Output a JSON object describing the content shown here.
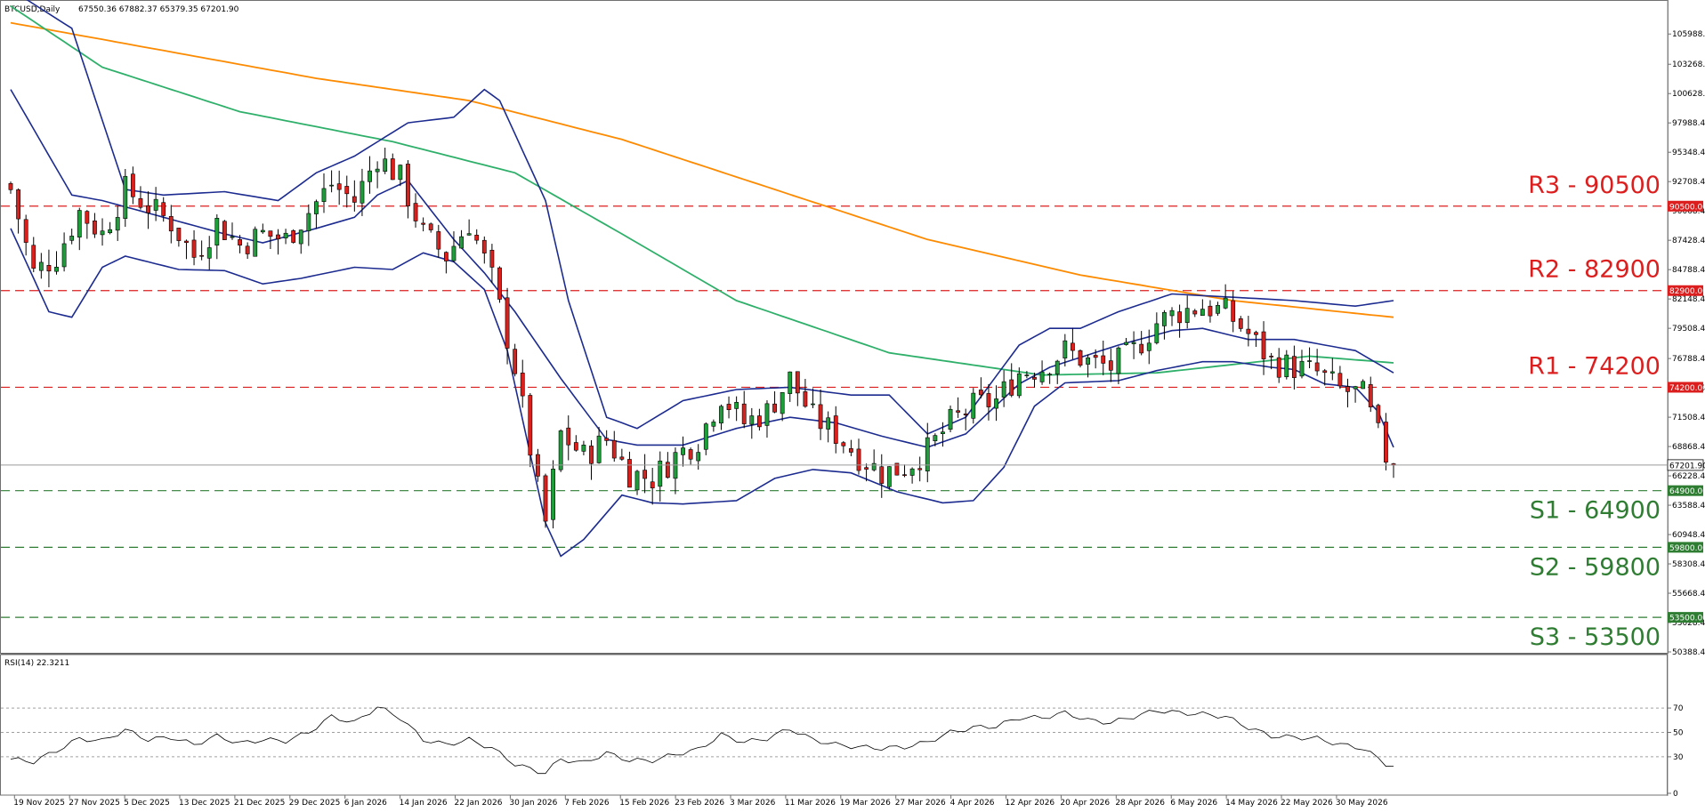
{
  "chart_data": {
    "type": "candlestick",
    "symbol_header": "BTCUSD,Daily",
    "ohlc_header": "67550.36 67882.37 65379.35 67201.90",
    "last_price": 67201.9,
    "last_price_label": "67201.90",
    "price_axis": {
      "ylim": [
        50388.4,
        108728.4
      ],
      "ticks": [
        "105988.40",
        "103268.40",
        "100628.40",
        "97988.40",
        "95348.40",
        "92708.40",
        "90068.40",
        "87428.40",
        "84788.40",
        "82148.40",
        "79508.40",
        "76788.40",
        "74148.40",
        "71508.40",
        "68868.40",
        "66228.40",
        "63588.40",
        "60948.40",
        "58308.40",
        "55668.40",
        "53028.40",
        "50388.40"
      ]
    },
    "levels": [
      {
        "label": "R3 - 90500",
        "value": 90500,
        "tag": "90500.00",
        "color": "#dc1e1e",
        "tag_bg": "#dc1e1e"
      },
      {
        "label": "R2 - 82900",
        "value": 82900,
        "tag": "82900.00",
        "color": "#dc1e1e",
        "tag_bg": "#dc1e1e"
      },
      {
        "label": "R1 - 74200",
        "value": 74200,
        "tag": "74200.00",
        "color": "#dc1e1e",
        "tag_bg": "#dc1e1e"
      },
      {
        "label": "S1 - 64900",
        "value": 64900,
        "tag": "64900.00",
        "color": "#2f7d32",
        "tag_bg": "#2e7d32"
      },
      {
        "label": "S2 - 59800",
        "value": 59800,
        "tag": "59800.00",
        "color": "#2f7d32",
        "tag_bg": "#2e7d32"
      },
      {
        "label": "S3 - 53500",
        "value": 53500,
        "tag": "53500.00",
        "color": "#2f7d32",
        "tag_bg": "#2e7d32"
      }
    ],
    "x_labels": [
      "19 Nov 2025",
      "27 Nov 2025",
      "5 Dec 2025",
      "13 Dec 2025",
      "21 Dec 2025",
      "29 Dec 2025",
      "6 Jan 2026",
      "14 Jan 2026",
      "22 Jan 2026",
      "30 Jan 2026",
      "7 Feb 2026",
      "15 Feb 2026",
      "23 Feb 2026",
      "3 Mar 2026",
      "11 Mar 2026",
      "19 Mar 2026",
      "27 Mar 2026",
      "4 Apr 2026",
      "12 Apr 2026",
      "20 Apr 2026",
      "28 Apr 2026",
      "6 May 2026",
      "14 May 2026",
      "22 May 2026",
      "30 May 2026"
    ],
    "series": [
      {
        "kind": "close_anchors",
        "points": [
          [
            0,
            92000
          ],
          [
            3,
            84500
          ],
          [
            6,
            86000
          ],
          [
            9,
            90000
          ],
          [
            12,
            88000
          ],
          [
            15,
            92000
          ],
          [
            18,
            90500
          ],
          [
            21,
            89000
          ],
          [
            24,
            86000
          ],
          [
            27,
            89000
          ],
          [
            30,
            87000
          ],
          [
            33,
            88000
          ],
          [
            36,
            87500
          ],
          [
            39,
            90000
          ],
          [
            42,
            92500
          ],
          [
            45,
            91000
          ],
          [
            48,
            95000
          ],
          [
            51,
            93000
          ],
          [
            54,
            88000
          ],
          [
            57,
            86000
          ],
          [
            60,
            89000
          ],
          [
            63,
            84000
          ],
          [
            66,
            76000
          ],
          [
            69,
            65000
          ],
          [
            70,
            62000
          ],
          [
            72,
            70000
          ],
          [
            75,
            68000
          ],
          [
            78,
            69500
          ],
          [
            81,
            66500
          ],
          [
            84,
            66000
          ],
          [
            87,
            68000
          ],
          [
            90,
            69500
          ],
          [
            93,
            73500
          ],
          [
            96,
            71000
          ],
          [
            99,
            72000
          ],
          [
            102,
            75000
          ],
          [
            105,
            71500
          ],
          [
            108,
            70000
          ],
          [
            111,
            68000
          ],
          [
            114,
            66500
          ],
          [
            117,
            67000
          ],
          [
            120,
            68500
          ],
          [
            123,
            71000
          ],
          [
            126,
            72500
          ],
          [
            129,
            73000
          ],
          [
            132,
            75500
          ],
          [
            135,
            76000
          ],
          [
            138,
            77500
          ],
          [
            141,
            76500
          ],
          [
            144,
            76000
          ],
          [
            147,
            77500
          ],
          [
            150,
            80000
          ],
          [
            153,
            81000
          ],
          [
            156,
            81500
          ],
          [
            159,
            81000
          ],
          [
            162,
            79000
          ],
          [
            165,
            76500
          ],
          [
            168,
            76000
          ],
          [
            171,
            75500
          ],
          [
            174,
            74000
          ],
          [
            177,
            73500
          ],
          [
            180,
            68000
          ],
          [
            181,
            67202
          ]
        ]
      },
      {
        "name": "MA-orange",
        "color": "#ff8a00",
        "points": [
          [
            0,
            107000
          ],
          [
            20,
            104500
          ],
          [
            40,
            102000
          ],
          [
            60,
            100000
          ],
          [
            80,
            96500
          ],
          [
            100,
            92000
          ],
          [
            120,
            87500
          ],
          [
            140,
            84300
          ],
          [
            160,
            82000
          ],
          [
            181,
            80500
          ]
        ]
      },
      {
        "name": "MA-green",
        "color": "#2fb06a",
        "points": [
          [
            0,
            108500
          ],
          [
            12,
            103000
          ],
          [
            30,
            99000
          ],
          [
            50,
            96300
          ],
          [
            66,
            93500
          ],
          [
            80,
            88000
          ],
          [
            95,
            82000
          ],
          [
            115,
            77300
          ],
          [
            135,
            75300
          ],
          [
            150,
            75500
          ],
          [
            170,
            77000
          ],
          [
            181,
            76400
          ]
        ]
      },
      {
        "name": "BB-upper",
        "color": "#1c2b8f",
        "points": [
          [
            0,
            110000
          ],
          [
            8,
            106500
          ],
          [
            15,
            92000
          ],
          [
            20,
            91500
          ],
          [
            28,
            91800
          ],
          [
            35,
            91000
          ],
          [
            40,
            93500
          ],
          [
            45,
            95000
          ],
          [
            52,
            98000
          ],
          [
            58,
            98500
          ],
          [
            62,
            101000
          ],
          [
            64,
            100000
          ],
          [
            70,
            91000
          ],
          [
            73,
            82000
          ],
          [
            78,
            71500
          ],
          [
            82,
            70500
          ],
          [
            88,
            73000
          ],
          [
            95,
            74000
          ],
          [
            102,
            74200
          ],
          [
            110,
            73500
          ],
          [
            115,
            73500
          ],
          [
            120,
            70000
          ],
          [
            125,
            71500
          ],
          [
            132,
            78000
          ],
          [
            136,
            79500
          ],
          [
            140,
            79500
          ],
          [
            145,
            81000
          ],
          [
            152,
            82600
          ],
          [
            160,
            82300
          ],
          [
            168,
            82000
          ],
          [
            176,
            81500
          ],
          [
            181,
            82000
          ]
        ]
      },
      {
        "name": "BB-mid",
        "color": "#1c2b8f",
        "points": [
          [
            0,
            101000
          ],
          [
            8,
            91500
          ],
          [
            12,
            91000
          ],
          [
            20,
            89500
          ],
          [
            28,
            88000
          ],
          [
            33,
            87200
          ],
          [
            40,
            88500
          ],
          [
            45,
            89500
          ],
          [
            48,
            91500
          ],
          [
            52,
            92800
          ],
          [
            58,
            87500
          ],
          [
            62,
            84500
          ],
          [
            66,
            81000
          ],
          [
            72,
            75000
          ],
          [
            78,
            69500
          ],
          [
            82,
            69000
          ],
          [
            88,
            69000
          ],
          [
            95,
            70500
          ],
          [
            102,
            71500
          ],
          [
            108,
            71000
          ],
          [
            114,
            69800
          ],
          [
            120,
            68800
          ],
          [
            125,
            70000
          ],
          [
            132,
            74500
          ],
          [
            136,
            76000
          ],
          [
            145,
            78000
          ],
          [
            152,
            79300
          ],
          [
            156,
            79500
          ],
          [
            162,
            78500
          ],
          [
            168,
            78500
          ],
          [
            176,
            77500
          ],
          [
            181,
            75500
          ]
        ]
      },
      {
        "name": "BB-lower",
        "color": "#1c2b8f",
        "points": [
          [
            0,
            88500
          ],
          [
            5,
            81000
          ],
          [
            8,
            80500
          ],
          [
            12,
            85000
          ],
          [
            15,
            86000
          ],
          [
            22,
            84800
          ],
          [
            28,
            84700
          ],
          [
            33,
            83500
          ],
          [
            38,
            84000
          ],
          [
            45,
            85000
          ],
          [
            50,
            84800
          ],
          [
            54,
            86300
          ],
          [
            58,
            85500
          ],
          [
            62,
            83000
          ],
          [
            65,
            77500
          ],
          [
            70,
            62000
          ],
          [
            72,
            59000
          ],
          [
            75,
            60500
          ],
          [
            80,
            64500
          ],
          [
            84,
            63800
          ],
          [
            88,
            63700
          ],
          [
            95,
            64000
          ],
          [
            100,
            66000
          ],
          [
            105,
            66800
          ],
          [
            110,
            66500
          ],
          [
            116,
            64800
          ],
          [
            122,
            63800
          ],
          [
            126,
            64000
          ],
          [
            130,
            67000
          ],
          [
            134,
            72500
          ],
          [
            138,
            74600
          ],
          [
            145,
            74800
          ],
          [
            150,
            75700
          ],
          [
            156,
            76500
          ],
          [
            160,
            76500
          ],
          [
            165,
            76000
          ],
          [
            168,
            75800
          ],
          [
            172,
            74500
          ],
          [
            176,
            74200
          ],
          [
            179,
            72000
          ],
          [
            181,
            68800
          ]
        ]
      }
    ],
    "rsi": {
      "label": "RSI(14) 22.3211",
      "ticks": [
        "70",
        "50",
        "30",
        "0"
      ],
      "ylim": [
        0,
        100
      ],
      "levels": [
        70,
        50,
        30
      ],
      "points": [
        [
          0,
          28
        ],
        [
          3,
          26
        ],
        [
          6,
          35
        ],
        [
          9,
          45
        ],
        [
          12,
          43
        ],
        [
          15,
          52
        ],
        [
          18,
          44
        ],
        [
          21,
          46
        ],
        [
          24,
          40
        ],
        [
          27,
          47
        ],
        [
          30,
          41
        ],
        [
          33,
          44
        ],
        [
          36,
          43
        ],
        [
          39,
          50
        ],
        [
          42,
          63
        ],
        [
          45,
          58
        ],
        [
          48,
          71
        ],
        [
          51,
          62
        ],
        [
          54,
          44
        ],
        [
          57,
          40
        ],
        [
          60,
          44
        ],
        [
          63,
          37
        ],
        [
          66,
          24
        ],
        [
          69,
          18
        ],
        [
          70,
          17
        ],
        [
          72,
          28
        ],
        [
          75,
          25
        ],
        [
          78,
          33
        ],
        [
          81,
          27
        ],
        [
          84,
          27
        ],
        [
          87,
          32
        ],
        [
          90,
          36
        ],
        [
          93,
          48
        ],
        [
          96,
          42
        ],
        [
          99,
          45
        ],
        [
          102,
          53
        ],
        [
          105,
          44
        ],
        [
          108,
          40
        ],
        [
          111,
          38
        ],
        [
          114,
          37
        ],
        [
          117,
          38
        ],
        [
          120,
          42
        ],
        [
          123,
          50
        ],
        [
          126,
          54
        ],
        [
          129,
          55
        ],
        [
          132,
          62
        ],
        [
          135,
          62
        ],
        [
          138,
          66
        ],
        [
          141,
          60
        ],
        [
          144,
          58
        ],
        [
          147,
          63
        ],
        [
          150,
          68
        ],
        [
          153,
          66
        ],
        [
          156,
          65
        ],
        [
          159,
          63
        ],
        [
          162,
          54
        ],
        [
          165,
          47
        ],
        [
          168,
          46
        ],
        [
          171,
          45
        ],
        [
          174,
          40
        ],
        [
          177,
          37
        ],
        [
          180,
          24
        ],
        [
          181,
          22.3
        ]
      ]
    }
  }
}
